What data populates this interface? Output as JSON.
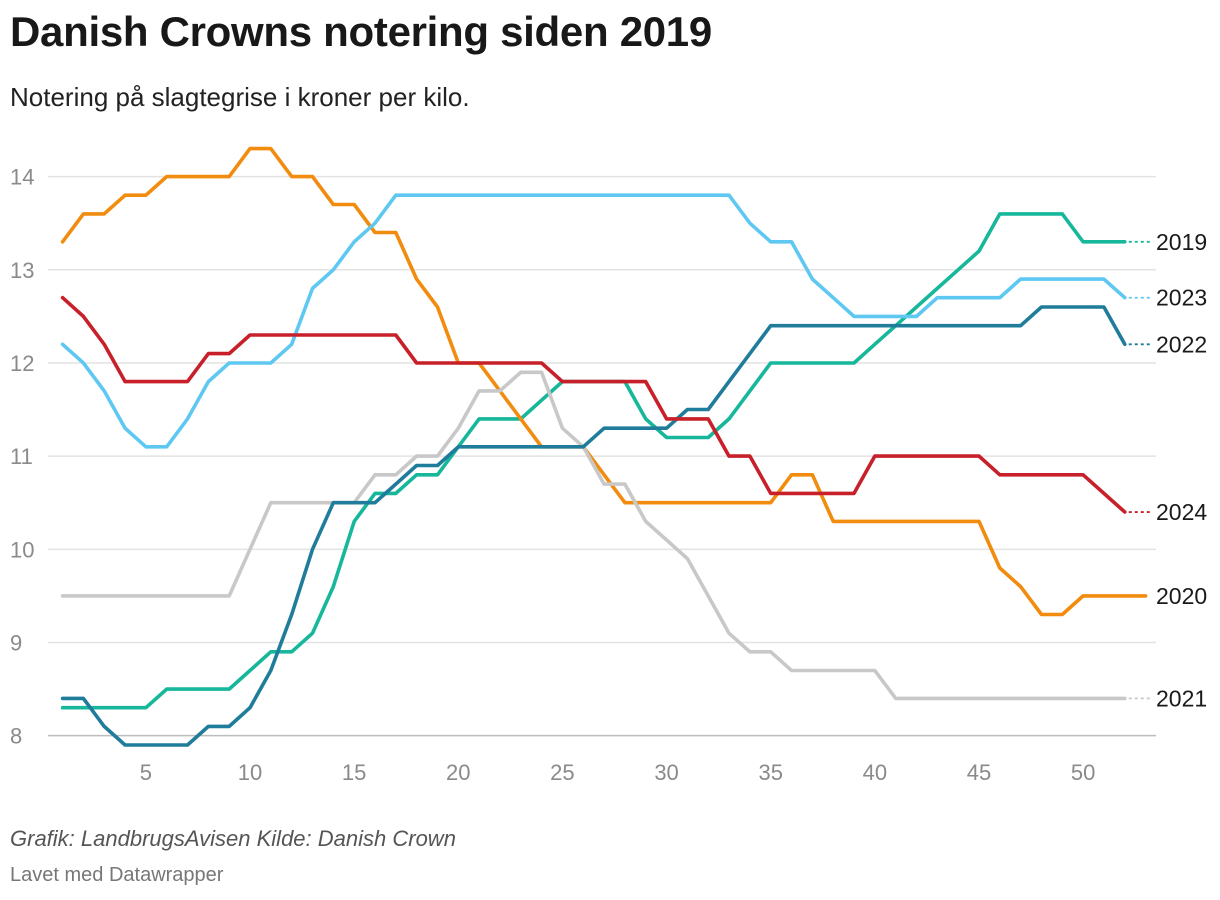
{
  "title": "Danish Crowns notering siden 2019",
  "subtitle": "Notering på slagtegrise i kroner per kilo.",
  "footer": {
    "source": "Grafik: LandbrugsAvisen Kilde: Danish Crown",
    "made_with": "Lavet med Datawrapper"
  },
  "chart_data": {
    "type": "line",
    "title": "Danish Crowns notering siden 2019",
    "xlabel": "",
    "ylabel": "",
    "xlim": [
      0.3,
      53.5
    ],
    "ylim": [
      7.9,
      14.5
    ],
    "x_ticks": [
      5,
      10,
      15,
      20,
      25,
      30,
      35,
      40,
      45,
      50
    ],
    "y_ticks": [
      8,
      9,
      10,
      11,
      12,
      13,
      14
    ],
    "grid": true,
    "legend": "direct labels at right end of lines",
    "series": [
      {
        "name": "2019",
        "color": "#16b79a",
        "label_y": 13.3,
        "points": [
          [
            1,
            8.3
          ],
          [
            2,
            8.3
          ],
          [
            3,
            8.3
          ],
          [
            4,
            8.3
          ],
          [
            5,
            8.3
          ],
          [
            6,
            8.5
          ],
          [
            7,
            8.5
          ],
          [
            8,
            8.5
          ],
          [
            9,
            8.5
          ],
          [
            10,
            8.7
          ],
          [
            11,
            8.9
          ],
          [
            12,
            8.9
          ],
          [
            13,
            9.1
          ],
          [
            14,
            9.6
          ],
          [
            15,
            10.3
          ],
          [
            16,
            10.6
          ],
          [
            17,
            10.6
          ],
          [
            18,
            10.8
          ],
          [
            19,
            10.8
          ],
          [
            20,
            11.1
          ],
          [
            21,
            11.4
          ],
          [
            22,
            11.4
          ],
          [
            23,
            11.4
          ],
          [
            24,
            11.6
          ],
          [
            25,
            11.8
          ],
          [
            26,
            11.8
          ],
          [
            27,
            11.8
          ],
          [
            28,
            11.8
          ],
          [
            29,
            11.4
          ],
          [
            30,
            11.2
          ],
          [
            31,
            11.2
          ],
          [
            32,
            11.2
          ],
          [
            33,
            11.4
          ],
          [
            34,
            11.7
          ],
          [
            35,
            12.0
          ],
          [
            36,
            12.0
          ],
          [
            37,
            12.0
          ],
          [
            38,
            12.0
          ],
          [
            39,
            12.0
          ],
          [
            40,
            12.2
          ],
          [
            41,
            12.4
          ],
          [
            42,
            12.6
          ],
          [
            43,
            12.8
          ],
          [
            44,
            13.0
          ],
          [
            45,
            13.2
          ],
          [
            46,
            13.6
          ],
          [
            47,
            13.6
          ],
          [
            48,
            13.6
          ],
          [
            49,
            13.6
          ],
          [
            50,
            13.3
          ],
          [
            51,
            13.3
          ],
          [
            52,
            13.3
          ]
        ]
      },
      {
        "name": "2020",
        "color": "#f28c0f",
        "label_y": 9.5,
        "points": [
          [
            1,
            13.3
          ],
          [
            2,
            13.6
          ],
          [
            3,
            13.6
          ],
          [
            4,
            13.8
          ],
          [
            5,
            13.8
          ],
          [
            6,
            14.0
          ],
          [
            7,
            14.0
          ],
          [
            8,
            14.0
          ],
          [
            9,
            14.0
          ],
          [
            10,
            14.3
          ],
          [
            11,
            14.3
          ],
          [
            12,
            14.0
          ],
          [
            13,
            14.0
          ],
          [
            14,
            13.7
          ],
          [
            15,
            13.7
          ],
          [
            16,
            13.4
          ],
          [
            17,
            13.4
          ],
          [
            18,
            12.9
          ],
          [
            19,
            12.6
          ],
          [
            20,
            12.0
          ],
          [
            21,
            12.0
          ],
          [
            22,
            11.7
          ],
          [
            23,
            11.4
          ],
          [
            24,
            11.1
          ],
          [
            25,
            11.1
          ],
          [
            26,
            11.1
          ],
          [
            27,
            10.8
          ],
          [
            28,
            10.5
          ],
          [
            29,
            10.5
          ],
          [
            30,
            10.5
          ],
          [
            31,
            10.5
          ],
          [
            32,
            10.5
          ],
          [
            33,
            10.5
          ],
          [
            34,
            10.5
          ],
          [
            35,
            10.5
          ],
          [
            36,
            10.8
          ],
          [
            37,
            10.8
          ],
          [
            38,
            10.3
          ],
          [
            39,
            10.3
          ],
          [
            40,
            10.3
          ],
          [
            41,
            10.3
          ],
          [
            42,
            10.3
          ],
          [
            43,
            10.3
          ],
          [
            44,
            10.3
          ],
          [
            45,
            10.3
          ],
          [
            46,
            9.8
          ],
          [
            47,
            9.6
          ],
          [
            48,
            9.3
          ],
          [
            49,
            9.3
          ],
          [
            50,
            9.5
          ],
          [
            51,
            9.5
          ],
          [
            52,
            9.5
          ],
          [
            53,
            9.5
          ]
        ]
      },
      {
        "name": "2021",
        "color": "#c8c8c8",
        "label_y": 8.4,
        "points": [
          [
            1,
            9.5
          ],
          [
            2,
            9.5
          ],
          [
            3,
            9.5
          ],
          [
            4,
            9.5
          ],
          [
            5,
            9.5
          ],
          [
            6,
            9.5
          ],
          [
            7,
            9.5
          ],
          [
            8,
            9.5
          ],
          [
            9,
            9.5
          ],
          [
            10,
            10.0
          ],
          [
            11,
            10.5
          ],
          [
            12,
            10.5
          ],
          [
            13,
            10.5
          ],
          [
            14,
            10.5
          ],
          [
            15,
            10.5
          ],
          [
            16,
            10.8
          ],
          [
            17,
            10.8
          ],
          [
            18,
            11.0
          ],
          [
            19,
            11.0
          ],
          [
            20,
            11.3
          ],
          [
            21,
            11.7
          ],
          [
            22,
            11.7
          ],
          [
            23,
            11.9
          ],
          [
            24,
            11.9
          ],
          [
            25,
            11.3
          ],
          [
            26,
            11.1
          ],
          [
            27,
            10.7
          ],
          [
            28,
            10.7
          ],
          [
            29,
            10.3
          ],
          [
            30,
            10.1
          ],
          [
            31,
            9.9
          ],
          [
            32,
            9.5
          ],
          [
            33,
            9.1
          ],
          [
            34,
            8.9
          ],
          [
            35,
            8.9
          ],
          [
            36,
            8.7
          ],
          [
            37,
            8.7
          ],
          [
            38,
            8.7
          ],
          [
            39,
            8.7
          ],
          [
            40,
            8.7
          ],
          [
            41,
            8.4
          ],
          [
            42,
            8.4
          ],
          [
            43,
            8.4
          ],
          [
            44,
            8.4
          ],
          [
            45,
            8.4
          ],
          [
            46,
            8.4
          ],
          [
            47,
            8.4
          ],
          [
            48,
            8.4
          ],
          [
            49,
            8.4
          ],
          [
            50,
            8.4
          ],
          [
            51,
            8.4
          ],
          [
            52,
            8.4
          ]
        ]
      },
      {
        "name": "2022",
        "color": "#1f7c9a",
        "label_y": 12.2,
        "points": [
          [
            1,
            8.4
          ],
          [
            2,
            8.4
          ],
          [
            3,
            8.1
          ],
          [
            4,
            7.9
          ],
          [
            5,
            7.9
          ],
          [
            6,
            7.9
          ],
          [
            7,
            7.9
          ],
          [
            8,
            8.1
          ],
          [
            9,
            8.1
          ],
          [
            10,
            8.3
          ],
          [
            11,
            8.7
          ],
          [
            12,
            9.3
          ],
          [
            13,
            10.0
          ],
          [
            14,
            10.5
          ],
          [
            15,
            10.5
          ],
          [
            16,
            10.5
          ],
          [
            17,
            10.7
          ],
          [
            18,
            10.9
          ],
          [
            19,
            10.9
          ],
          [
            20,
            11.1
          ],
          [
            21,
            11.1
          ],
          [
            22,
            11.1
          ],
          [
            23,
            11.1
          ],
          [
            24,
            11.1
          ],
          [
            25,
            11.1
          ],
          [
            26,
            11.1
          ],
          [
            27,
            11.3
          ],
          [
            28,
            11.3
          ],
          [
            29,
            11.3
          ],
          [
            30,
            11.3
          ],
          [
            31,
            11.5
          ],
          [
            32,
            11.5
          ],
          [
            33,
            11.8
          ],
          [
            34,
            12.1
          ],
          [
            35,
            12.4
          ],
          [
            36,
            12.4
          ],
          [
            37,
            12.4
          ],
          [
            38,
            12.4
          ],
          [
            39,
            12.4
          ],
          [
            40,
            12.4
          ],
          [
            41,
            12.4
          ],
          [
            42,
            12.4
          ],
          [
            43,
            12.4
          ],
          [
            44,
            12.4
          ],
          [
            45,
            12.4
          ],
          [
            46,
            12.4
          ],
          [
            47,
            12.4
          ],
          [
            48,
            12.6
          ],
          [
            49,
            12.6
          ],
          [
            50,
            12.6
          ],
          [
            51,
            12.6
          ],
          [
            52,
            12.2
          ]
        ]
      },
      {
        "name": "2023",
        "color": "#5ec8f2",
        "label_y": 12.7,
        "points": [
          [
            1,
            12.2
          ],
          [
            2,
            12.0
          ],
          [
            3,
            11.7
          ],
          [
            4,
            11.3
          ],
          [
            5,
            11.1
          ],
          [
            6,
            11.1
          ],
          [
            7,
            11.4
          ],
          [
            8,
            11.8
          ],
          [
            9,
            12.0
          ],
          [
            10,
            12.0
          ],
          [
            11,
            12.0
          ],
          [
            12,
            12.2
          ],
          [
            13,
            12.8
          ],
          [
            14,
            13.0
          ],
          [
            15,
            13.3
          ],
          [
            16,
            13.5
          ],
          [
            17,
            13.8
          ],
          [
            18,
            13.8
          ],
          [
            19,
            13.8
          ],
          [
            20,
            13.8
          ],
          [
            21,
            13.8
          ],
          [
            22,
            13.8
          ],
          [
            23,
            13.8
          ],
          [
            24,
            13.8
          ],
          [
            25,
            13.8
          ],
          [
            26,
            13.8
          ],
          [
            27,
            13.8
          ],
          [
            28,
            13.8
          ],
          [
            29,
            13.8
          ],
          [
            30,
            13.8
          ],
          [
            31,
            13.8
          ],
          [
            32,
            13.8
          ],
          [
            33,
            13.8
          ],
          [
            34,
            13.5
          ],
          [
            35,
            13.3
          ],
          [
            36,
            13.3
          ],
          [
            37,
            12.9
          ],
          [
            38,
            12.7
          ],
          [
            39,
            12.5
          ],
          [
            40,
            12.5
          ],
          [
            41,
            12.5
          ],
          [
            42,
            12.5
          ],
          [
            43,
            12.7
          ],
          [
            44,
            12.7
          ],
          [
            45,
            12.7
          ],
          [
            46,
            12.7
          ],
          [
            47,
            12.9
          ],
          [
            48,
            12.9
          ],
          [
            49,
            12.9
          ],
          [
            50,
            12.9
          ],
          [
            51,
            12.9
          ],
          [
            52,
            12.7
          ]
        ]
      },
      {
        "name": "2024",
        "color": "#c8202a",
        "label_y": 10.4,
        "points": [
          [
            1,
            12.7
          ],
          [
            2,
            12.5
          ],
          [
            3,
            12.2
          ],
          [
            4,
            11.8
          ],
          [
            5,
            11.8
          ],
          [
            6,
            11.8
          ],
          [
            7,
            11.8
          ],
          [
            8,
            12.1
          ],
          [
            9,
            12.1
          ],
          [
            10,
            12.3
          ],
          [
            11,
            12.3
          ],
          [
            12,
            12.3
          ],
          [
            13,
            12.3
          ],
          [
            14,
            12.3
          ],
          [
            15,
            12.3
          ],
          [
            16,
            12.3
          ],
          [
            17,
            12.3
          ],
          [
            18,
            12.0
          ],
          [
            19,
            12.0
          ],
          [
            20,
            12.0
          ],
          [
            21,
            12.0
          ],
          [
            22,
            12.0
          ],
          [
            23,
            12.0
          ],
          [
            24,
            12.0
          ],
          [
            25,
            11.8
          ],
          [
            26,
            11.8
          ],
          [
            27,
            11.8
          ],
          [
            28,
            11.8
          ],
          [
            29,
            11.8
          ],
          [
            30,
            11.4
          ],
          [
            31,
            11.4
          ],
          [
            32,
            11.4
          ],
          [
            33,
            11.0
          ],
          [
            34,
            11.0
          ],
          [
            35,
            10.6
          ],
          [
            36,
            10.6
          ],
          [
            37,
            10.6
          ],
          [
            38,
            10.6
          ],
          [
            39,
            10.6
          ],
          [
            40,
            11.0
          ],
          [
            41,
            11.0
          ],
          [
            42,
            11.0
          ],
          [
            43,
            11.0
          ],
          [
            44,
            11.0
          ],
          [
            45,
            11.0
          ],
          [
            46,
            10.8
          ],
          [
            47,
            10.8
          ],
          [
            48,
            10.8
          ],
          [
            49,
            10.8
          ],
          [
            50,
            10.8
          ],
          [
            51,
            10.6
          ],
          [
            52,
            10.4
          ]
        ]
      }
    ]
  }
}
